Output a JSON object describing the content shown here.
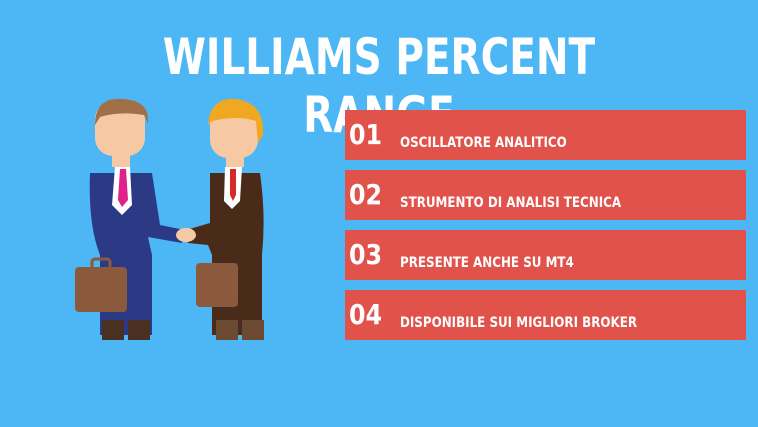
{
  "header": {
    "title": "WILLIAMS PERCENT RANGE"
  },
  "items": [
    {
      "number": "01",
      "label": "OSCILLATORE ANALITICO"
    },
    {
      "number": "02",
      "label": "STRUMENTO DI ANALISI TECNICA"
    },
    {
      "number": "03",
      "label": "PRESENTE ANCHE SU MT4"
    },
    {
      "number": "04",
      "label": "DISPONIBILE SUI MIGLIORI BROKER"
    }
  ]
}
